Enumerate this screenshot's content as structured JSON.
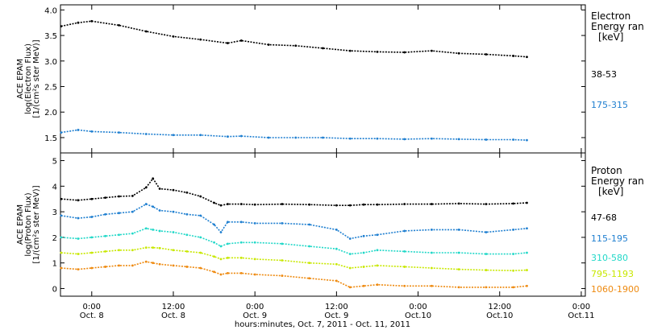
{
  "x_axis": {
    "title": "hours:minutes, Oct.  7, 2011 - Oct. 11, 2011",
    "ticks": [
      {
        "time": 24,
        "hm": "0:00",
        "day": "Oct. 8"
      },
      {
        "time": 36,
        "hm": "12:00",
        "day": "Oct. 8"
      },
      {
        "time": 48,
        "hm": "0:00",
        "day": "Oct. 9"
      },
      {
        "time": 60,
        "hm": "12:00",
        "day": "Oct. 9"
      },
      {
        "time": 72,
        "hm": "0:00",
        "day": "Oct.10"
      },
      {
        "time": 84,
        "hm": "12:00",
        "day": "Oct.10"
      },
      {
        "time": 96,
        "hm": "0:00",
        "day": "Oct.11"
      }
    ],
    "range_hours_from_oct7": [
      19.4,
      96.6
    ]
  },
  "chart_data": [
    {
      "type": "scatter",
      "panel": "electron",
      "ylabel_lines": [
        "ACE EPAM",
        "log(Electron Flux)",
        "[1/(cm²s ster MeV)]"
      ],
      "ylim": [
        1.2,
        4.1
      ],
      "yticks": [
        1.5,
        2.0,
        2.5,
        3.0,
        3.5,
        4.0
      ],
      "ytick_labels": [
        "1.5",
        "2.0",
        "2.5",
        "3.0",
        "3.5",
        "4.0"
      ],
      "legend_title": [
        "Electron",
        "Energy ran",
        "[keV]"
      ],
      "legend_position": "right",
      "x": [
        19.5,
        22,
        24,
        28,
        32,
        36,
        40,
        44,
        46,
        50,
        54,
        58,
        62,
        66,
        70,
        74,
        78,
        82,
        86,
        88
      ],
      "series": [
        {
          "name": "38-53",
          "color": "#000000",
          "values": [
            3.68,
            3.75,
            3.78,
            3.7,
            3.58,
            3.48,
            3.42,
            3.35,
            3.4,
            3.32,
            3.3,
            3.25,
            3.2,
            3.18,
            3.17,
            3.2,
            3.15,
            3.13,
            3.1,
            3.08
          ]
        },
        {
          "name": "175-315",
          "color": "#1f7fd0",
          "values": [
            1.6,
            1.65,
            1.62,
            1.6,
            1.57,
            1.55,
            1.55,
            1.52,
            1.53,
            1.5,
            1.5,
            1.5,
            1.48,
            1.48,
            1.47,
            1.48,
            1.47,
            1.46,
            1.46,
            1.45
          ]
        }
      ]
    },
    {
      "type": "scatter",
      "panel": "proton",
      "ylabel_lines": [
        "ACE EPAM",
        "log(Proton Flux)",
        "[1/(cm²s ster MeV)]"
      ],
      "ylim": [
        -0.3,
        5.3
      ],
      "yticks": [
        0,
        1,
        2,
        3,
        4,
        5
      ],
      "ytick_labels": [
        "0",
        "1",
        "2",
        "3",
        "4",
        "5"
      ],
      "legend_title": [
        "Proton",
        "Energy ran",
        "[keV]"
      ],
      "legend_position": "right",
      "x": [
        19.5,
        22,
        24,
        26,
        28,
        30,
        32,
        33,
        34,
        36,
        38,
        40,
        42,
        43,
        44,
        46,
        48,
        52,
        56,
        60,
        62,
        64,
        66,
        70,
        74,
        78,
        82,
        86,
        88
      ],
      "series": [
        {
          "name": "47-68",
          "color": "#000000",
          "values": [
            3.5,
            3.45,
            3.5,
            3.55,
            3.6,
            3.62,
            3.95,
            4.3,
            3.9,
            3.85,
            3.75,
            3.6,
            3.35,
            3.25,
            3.3,
            3.3,
            3.28,
            3.3,
            3.28,
            3.25,
            3.25,
            3.28,
            3.28,
            3.3,
            3.3,
            3.32,
            3.3,
            3.32,
            3.35
          ]
        },
        {
          "name": "115-195",
          "color": "#1f7fd0",
          "values": [
            2.85,
            2.75,
            2.8,
            2.9,
            2.95,
            3.0,
            3.3,
            3.2,
            3.05,
            3.0,
            2.9,
            2.85,
            2.5,
            2.2,
            2.6,
            2.6,
            2.55,
            2.55,
            2.5,
            2.3,
            1.95,
            2.05,
            2.1,
            2.25,
            2.3,
            2.3,
            2.2,
            2.3,
            2.35
          ]
        },
        {
          "name": "310-580",
          "color": "#22d8c8",
          "values": [
            2.0,
            1.95,
            2.0,
            2.05,
            2.1,
            2.15,
            2.35,
            2.3,
            2.25,
            2.2,
            2.1,
            2.0,
            1.8,
            1.65,
            1.75,
            1.8,
            1.8,
            1.75,
            1.65,
            1.55,
            1.35,
            1.4,
            1.5,
            1.45,
            1.4,
            1.4,
            1.35,
            1.35,
            1.4
          ]
        },
        {
          "name": "795-1193",
          "color": "#c8e800",
          "values": [
            1.4,
            1.35,
            1.4,
            1.45,
            1.5,
            1.5,
            1.6,
            1.6,
            1.58,
            1.5,
            1.45,
            1.4,
            1.25,
            1.15,
            1.2,
            1.2,
            1.15,
            1.1,
            1.0,
            0.95,
            0.8,
            0.85,
            0.9,
            0.85,
            0.8,
            0.75,
            0.72,
            0.7,
            0.72
          ]
        },
        {
          "name": "1060-1900",
          "color": "#ee8a10",
          "values": [
            0.8,
            0.75,
            0.8,
            0.85,
            0.9,
            0.9,
            1.05,
            1.0,
            0.95,
            0.9,
            0.85,
            0.8,
            0.65,
            0.55,
            0.6,
            0.6,
            0.55,
            0.5,
            0.4,
            0.3,
            0.05,
            0.1,
            0.15,
            0.1,
            0.1,
            0.05,
            0.05,
            0.05,
            0.1
          ]
        }
      ]
    }
  ]
}
